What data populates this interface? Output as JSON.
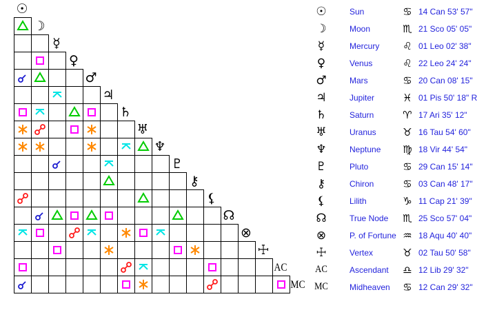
{
  "planets": [
    {
      "name": "Sun",
      "icon": "sun-icon",
      "glyph": "☉",
      "sign_icon": "cancer-icon",
      "sign_glyph": "♋",
      "position": "14 Can 53' 57\""
    },
    {
      "name": "Moon",
      "icon": "moon-icon",
      "glyph": "☽",
      "sign_icon": "scorpio-icon",
      "sign_glyph": "♏",
      "position": "21 Sco 05' 05\""
    },
    {
      "name": "Mercury",
      "icon": "mercury-icon",
      "glyph": "☿",
      "sign_icon": "leo-icon",
      "sign_glyph": "♌",
      "position": "01 Leo 02' 38\""
    },
    {
      "name": "Venus",
      "icon": "venus-icon",
      "glyph": "♀",
      "sign_icon": "leo-icon",
      "sign_glyph": "♌",
      "position": "22 Leo 24' 24\""
    },
    {
      "name": "Mars",
      "icon": "mars-icon",
      "glyph": "♂",
      "sign_icon": "cancer-icon",
      "sign_glyph": "♋",
      "position": "20 Can 08' 15\""
    },
    {
      "name": "Jupiter",
      "icon": "jupiter-icon",
      "glyph": "♃",
      "sign_icon": "pisces-icon",
      "sign_glyph": "♓",
      "position": "01 Pis 50' 18\" R"
    },
    {
      "name": "Saturn",
      "icon": "saturn-icon",
      "glyph": "♄",
      "sign_icon": "aries-icon",
      "sign_glyph": "♈",
      "position": "17 Ari 35' 12\""
    },
    {
      "name": "Uranus",
      "icon": "uranus-icon",
      "glyph": "♅",
      "sign_icon": "taurus-icon",
      "sign_glyph": "♉",
      "position": "16 Tau 54' 60\""
    },
    {
      "name": "Neptune",
      "icon": "neptune-icon",
      "glyph": "♆",
      "sign_icon": "virgo-icon",
      "sign_glyph": "♍",
      "position": "18 Vir 44' 54\""
    },
    {
      "name": "Pluto",
      "icon": "pluto-icon",
      "glyph": "♇",
      "sign_icon": "cancer-icon",
      "sign_glyph": "♋",
      "position": "29 Can 15' 14\""
    },
    {
      "name": "Chiron",
      "icon": "chiron-icon",
      "glyph": "⚷",
      "sign_icon": "cancer-icon",
      "sign_glyph": "♋",
      "position": "03 Can 48' 17\""
    },
    {
      "name": "Lilith",
      "icon": "lilith-icon",
      "glyph": "⚸",
      "sign_icon": "capricorn-icon",
      "sign_glyph": "♑",
      "position": "11 Cap 21' 39\""
    },
    {
      "name": "True Node",
      "icon": "true-node-icon",
      "glyph": "☊",
      "sign_icon": "scorpio-icon",
      "sign_glyph": "♏",
      "position": "25 Sco 57' 04\""
    },
    {
      "name": "P. of Fortune",
      "icon": "part-of-fortune-icon",
      "glyph": "⊗",
      "sign_icon": "aquarius-icon",
      "sign_glyph": "♒",
      "position": "18 Aqu 40' 40\""
    },
    {
      "name": "Vertex",
      "icon": "vertex-icon",
      "glyph": "☩",
      "sign_icon": "taurus-icon",
      "sign_glyph": "♉",
      "position": "02 Tau 50' 58\""
    },
    {
      "name": "Ascendant",
      "icon": "ascendant-icon",
      "glyph": "AC",
      "sign_icon": "libra-icon",
      "sign_glyph": "♎",
      "position": "12 Lib 29' 32\""
    },
    {
      "name": "Midheaven",
      "icon": "midheaven-icon",
      "glyph": "MC",
      "sign_icon": "cancer-icon",
      "sign_glyph": "♋",
      "position": "12 Can 29' 32\""
    }
  ],
  "aspect_colors": {
    "conjunction": "#1a1ad0",
    "opposition": "#ff1a1a",
    "trine": "#00cc00",
    "square": "#ff00ff",
    "sextile": "#ff8800",
    "quincunx": "#00e5e5"
  },
  "aspects": [
    {
      "row": 1,
      "col": 0,
      "type": "trine"
    },
    {
      "row": 3,
      "col": 1,
      "type": "square"
    },
    {
      "row": 4,
      "col": 0,
      "type": "conjunction"
    },
    {
      "row": 4,
      "col": 1,
      "type": "trine"
    },
    {
      "row": 5,
      "col": 2,
      "type": "quincunx"
    },
    {
      "row": 6,
      "col": 0,
      "type": "square"
    },
    {
      "row": 6,
      "col": 1,
      "type": "quincunx"
    },
    {
      "row": 6,
      "col": 3,
      "type": "trine"
    },
    {
      "row": 6,
      "col": 4,
      "type": "square"
    },
    {
      "row": 7,
      "col": 0,
      "type": "sextile"
    },
    {
      "row": 7,
      "col": 1,
      "type": "opposition"
    },
    {
      "row": 7,
      "col": 3,
      "type": "square"
    },
    {
      "row": 7,
      "col": 4,
      "type": "sextile"
    },
    {
      "row": 8,
      "col": 0,
      "type": "sextile"
    },
    {
      "row": 8,
      "col": 1,
      "type": "sextile"
    },
    {
      "row": 8,
      "col": 4,
      "type": "sextile"
    },
    {
      "row": 8,
      "col": 6,
      "type": "quincunx"
    },
    {
      "row": 8,
      "col": 7,
      "type": "trine"
    },
    {
      "row": 9,
      "col": 2,
      "type": "conjunction"
    },
    {
      "row": 9,
      "col": 5,
      "type": "quincunx"
    },
    {
      "row": 10,
      "col": 5,
      "type": "trine"
    },
    {
      "row": 11,
      "col": 0,
      "type": "opposition"
    },
    {
      "row": 11,
      "col": 7,
      "type": "trine"
    },
    {
      "row": 12,
      "col": 1,
      "type": "conjunction"
    },
    {
      "row": 12,
      "col": 2,
      "type": "trine"
    },
    {
      "row": 12,
      "col": 3,
      "type": "square"
    },
    {
      "row": 12,
      "col": 4,
      "type": "trine"
    },
    {
      "row": 12,
      "col": 5,
      "type": "square"
    },
    {
      "row": 12,
      "col": 9,
      "type": "trine"
    },
    {
      "row": 13,
      "col": 0,
      "type": "quincunx"
    },
    {
      "row": 13,
      "col": 1,
      "type": "square"
    },
    {
      "row": 13,
      "col": 3,
      "type": "opposition"
    },
    {
      "row": 13,
      "col": 4,
      "type": "quincunx"
    },
    {
      "row": 13,
      "col": 6,
      "type": "sextile"
    },
    {
      "row": 13,
      "col": 7,
      "type": "square"
    },
    {
      "row": 13,
      "col": 8,
      "type": "quincunx"
    },
    {
      "row": 14,
      "col": 2,
      "type": "square"
    },
    {
      "row": 14,
      "col": 5,
      "type": "sextile"
    },
    {
      "row": 14,
      "col": 9,
      "type": "square"
    },
    {
      "row": 14,
      "col": 10,
      "type": "sextile"
    },
    {
      "row": 15,
      "col": 0,
      "type": "square"
    },
    {
      "row": 15,
      "col": 6,
      "type": "opposition"
    },
    {
      "row": 15,
      "col": 7,
      "type": "quincunx"
    },
    {
      "row": 15,
      "col": 11,
      "type": "square"
    },
    {
      "row": 16,
      "col": 0,
      "type": "conjunction"
    },
    {
      "row": 16,
      "col": 6,
      "type": "square"
    },
    {
      "row": 16,
      "col": 7,
      "type": "sextile"
    },
    {
      "row": 16,
      "col": 11,
      "type": "opposition"
    },
    {
      "row": 16,
      "col": 15,
      "type": "square"
    }
  ]
}
